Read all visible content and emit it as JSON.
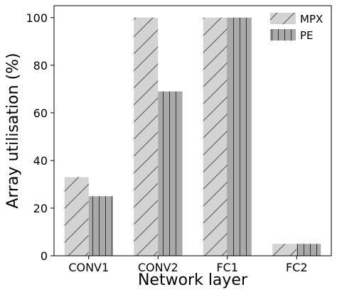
{
  "chart_data": {
    "type": "bar",
    "categories": [
      "CONV1",
      "CONV2",
      "FC1",
      "FC2"
    ],
    "series": [
      {
        "name": "MPX",
        "values": [
          33,
          100,
          100,
          5
        ],
        "color": "#d3d3d3",
        "hatch": "diagonal"
      },
      {
        "name": "PE",
        "values": [
          25,
          69,
          100,
          5
        ],
        "color": "#a9a9a9",
        "hatch": "vertical"
      }
    ],
    "title": "",
    "xlabel": "Network layer",
    "ylabel": "Array utilisation (%)",
    "ylim": [
      0,
      105
    ],
    "yticks": [
      0,
      20,
      40,
      60,
      80,
      100
    ],
    "grid": false,
    "legend_position": "top-right"
  }
}
